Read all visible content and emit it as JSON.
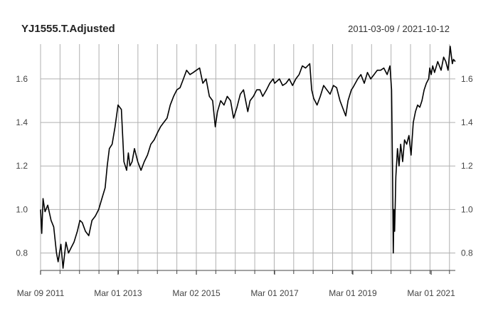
{
  "chart_data": {
    "type": "line",
    "title": "YJ1555.T.Adjusted",
    "date_range": "2011-03-09 / 2021-10-12",
    "x_tick_labels": [
      "Mar 09 2011",
      "Mar 01 2013",
      "Mar 02 2015",
      "Mar 01 2017",
      "Mar 01 2019",
      "Mar 01 2021"
    ],
    "y_tick_labels": [
      "0.8",
      "1.0",
      "1.2",
      "1.4",
      "1.6"
    ],
    "y_ticks": [
      0.8,
      1.0,
      1.2,
      1.4,
      1.6
    ],
    "ylim": [
      0.72,
      1.76
    ],
    "x_range": [
      "2011-03-09",
      "2021-10-12"
    ],
    "grid": true,
    "line_color": "#000000",
    "grid_color": "#b0b0b0",
    "series": [
      {
        "x": [
          "2011-03-09",
          "2011-03-20",
          "2011-04-01",
          "2011-04-20",
          "2011-05-15",
          "2011-06-15",
          "2011-07-10",
          "2011-08-05",
          "2011-08-20",
          "2011-09-15",
          "2011-10-05",
          "2011-11-01",
          "2011-11-25",
          "2011-12-15",
          "2012-01-15",
          "2012-02-15",
          "2012-03-10",
          "2012-04-01",
          "2012-05-01",
          "2012-06-01",
          "2012-07-01",
          "2012-08-01",
          "2012-09-01",
          "2012-10-01",
          "2012-11-01",
          "2012-11-20",
          "2012-12-10",
          "2013-01-05",
          "2013-02-01",
          "2013-03-01",
          "2013-04-01",
          "2013-04-25",
          "2013-05-20",
          "2013-06-05",
          "2013-06-20",
          "2013-07-10",
          "2013-08-01",
          "2013-09-01",
          "2013-10-01",
          "2013-11-01",
          "2013-12-01",
          "2014-01-01",
          "2014-02-01",
          "2014-03-01",
          "2014-04-01",
          "2014-05-01",
          "2014-06-01",
          "2014-07-01",
          "2014-08-01",
          "2014-09-01",
          "2014-10-01",
          "2014-11-01",
          "2014-12-01",
          "2015-01-01",
          "2015-02-01",
          "2015-03-02",
          "2015-04-01",
          "2015-05-01",
          "2015-06-01",
          "2015-07-01",
          "2015-08-01",
          "2015-08-25",
          "2015-09-15",
          "2015-10-15",
          "2015-11-15",
          "2015-12-15",
          "2016-01-15",
          "2016-02-12",
          "2016-03-15",
          "2016-04-15",
          "2016-05-15",
          "2016-06-24",
          "2016-07-15",
          "2016-08-15",
          "2016-09-15",
          "2016-10-15",
          "2016-11-10",
          "2016-12-15",
          "2017-01-15",
          "2017-02-15",
          "2017-03-01",
          "2017-04-15",
          "2017-05-15",
          "2017-06-15",
          "2017-07-15",
          "2017-08-15",
          "2017-09-15",
          "2017-10-15",
          "2017-11-15",
          "2017-12-15",
          "2018-01-23",
          "2018-02-10",
          "2018-03-01",
          "2018-04-01",
          "2018-05-01",
          "2018-06-01",
          "2018-07-01",
          "2018-08-01",
          "2018-09-01",
          "2018-10-01",
          "2018-11-01",
          "2018-12-25",
          "2019-01-15",
          "2019-02-15",
          "2019-03-01",
          "2019-04-15",
          "2019-05-15",
          "2019-06-15",
          "2019-07-15",
          "2019-08-15",
          "2019-09-15",
          "2019-10-15",
          "2019-11-15",
          "2019-12-15",
          "2020-01-15",
          "2020-02-10",
          "2020-02-25",
          "2020-03-05",
          "2020-03-12",
          "2020-03-19",
          "2020-03-25",
          "2020-04-05",
          "2020-04-20",
          "2020-05-05",
          "2020-05-20",
          "2020-06-08",
          "2020-06-25",
          "2020-07-15",
          "2020-08-05",
          "2020-08-25",
          "2020-09-15",
          "2020-10-05",
          "2020-10-25",
          "2020-11-15",
          "2020-12-05",
          "2020-12-25",
          "2021-01-15",
          "2021-02-05",
          "2021-02-16",
          "2021-03-01",
          "2021-03-15",
          "2021-04-01",
          "2021-05-01",
          "2021-06-01",
          "2021-06-25",
          "2021-07-15",
          "2021-08-05",
          "2021-08-25",
          "2021-09-14",
          "2021-09-25",
          "2021-10-12"
        ],
        "values": [
          1.0,
          0.89,
          1.05,
          0.99,
          1.02,
          0.95,
          0.92,
          0.8,
          0.76,
          0.84,
          0.73,
          0.85,
          0.8,
          0.82,
          0.85,
          0.9,
          0.95,
          0.94,
          0.9,
          0.88,
          0.95,
          0.97,
          1.0,
          1.05,
          1.1,
          1.2,
          1.28,
          1.3,
          1.38,
          1.48,
          1.46,
          1.22,
          1.18,
          1.26,
          1.2,
          1.22,
          1.28,
          1.22,
          1.18,
          1.22,
          1.25,
          1.3,
          1.32,
          1.35,
          1.38,
          1.4,
          1.42,
          1.48,
          1.52,
          1.55,
          1.56,
          1.6,
          1.64,
          1.62,
          1.63,
          1.64,
          1.65,
          1.58,
          1.6,
          1.52,
          1.5,
          1.38,
          1.45,
          1.5,
          1.48,
          1.52,
          1.5,
          1.42,
          1.47,
          1.53,
          1.55,
          1.45,
          1.5,
          1.52,
          1.55,
          1.55,
          1.52,
          1.55,
          1.58,
          1.6,
          1.58,
          1.6,
          1.57,
          1.58,
          1.6,
          1.57,
          1.6,
          1.62,
          1.66,
          1.65,
          1.67,
          1.55,
          1.51,
          1.48,
          1.52,
          1.57,
          1.55,
          1.53,
          1.57,
          1.56,
          1.5,
          1.43,
          1.5,
          1.55,
          1.56,
          1.6,
          1.62,
          1.58,
          1.63,
          1.6,
          1.62,
          1.64,
          1.64,
          1.65,
          1.62,
          1.66,
          1.55,
          1.2,
          0.8,
          1.0,
          0.9,
          1.15,
          1.28,
          1.2,
          1.3,
          1.22,
          1.32,
          1.3,
          1.34,
          1.25,
          1.4,
          1.45,
          1.48,
          1.47,
          1.5,
          1.55,
          1.58,
          1.6,
          1.65,
          1.62,
          1.66,
          1.63,
          1.68,
          1.64,
          1.7,
          1.68,
          1.64,
          1.75,
          1.67,
          1.69,
          1.68
        ]
      }
    ]
  }
}
